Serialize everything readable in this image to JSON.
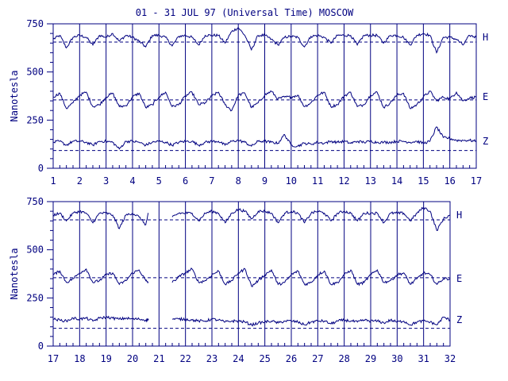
{
  "chart_data": [
    {
      "type": "line",
      "title": "01 - 31 JUL 97 (Universal Time) MOSCOW",
      "ylabel": "Nanotesla",
      "xlim": [
        1,
        17
      ],
      "ylim": [
        0,
        750
      ],
      "yticks": [
        0,
        250,
        500,
        750
      ],
      "xticks": [
        1,
        2,
        3,
        4,
        5,
        6,
        7,
        8,
        9,
        10,
        11,
        12,
        13,
        14,
        15,
        16,
        17
      ],
      "grid": "vertical day lines",
      "series": [
        {
          "name": "H",
          "baseline": 655,
          "x": [
            1.0,
            1.25,
            1.5,
            1.75,
            2.0,
            2.25,
            2.5,
            2.75,
            3.0,
            3.25,
            3.5,
            3.75,
            4.0,
            4.25,
            4.5,
            4.75,
            5.0,
            5.25,
            5.5,
            5.75,
            6.0,
            6.25,
            6.5,
            6.75,
            7.0,
            7.25,
            7.5,
            7.75,
            8.0,
            8.25,
            8.5,
            8.75,
            9.0,
            9.25,
            9.5,
            9.75,
            10.0,
            10.25,
            10.5,
            10.75,
            11.0,
            11.25,
            11.5,
            11.75,
            12.0,
            12.25,
            12.5,
            12.75,
            13.0,
            13.25,
            13.5,
            13.75,
            14.0,
            14.25,
            14.5,
            14.75,
            15.0,
            15.25,
            15.5,
            15.75,
            16.0,
            16.25,
            16.5,
            16.75,
            17.0
          ],
          "values": [
            670,
            690,
            625,
            680,
            690,
            680,
            640,
            690,
            680,
            700,
            660,
            690,
            680,
            660,
            630,
            690,
            690,
            680,
            635,
            685,
            690,
            680,
            640,
            690,
            690,
            690,
            650,
            710,
            730,
            690,
            615,
            690,
            690,
            670,
            640,
            680,
            685,
            680,
            630,
            685,
            690,
            680,
            650,
            690,
            690,
            690,
            640,
            690,
            690,
            690,
            650,
            690,
            690,
            680,
            640,
            690,
            700,
            690,
            600,
            680,
            680,
            670,
            640,
            690,
            680
          ]
        },
        {
          "name": "E",
          "baseline": 355,
          "x": [
            1.0,
            1.25,
            1.5,
            1.75,
            2.0,
            2.25,
            2.5,
            2.75,
            3.0,
            3.25,
            3.5,
            3.75,
            4.0,
            4.25,
            4.5,
            4.75,
            5.0,
            5.25,
            5.5,
            5.75,
            6.0,
            6.25,
            6.5,
            6.75,
            7.0,
            7.25,
            7.5,
            7.75,
            8.0,
            8.25,
            8.5,
            8.75,
            9.0,
            9.25,
            9.5,
            9.75,
            10.0,
            10.25,
            10.5,
            10.75,
            11.0,
            11.25,
            11.5,
            11.75,
            12.0,
            12.25,
            12.5,
            12.75,
            13.0,
            13.25,
            13.5,
            13.75,
            14.0,
            14.25,
            14.5,
            14.75,
            15.0,
            15.25,
            15.5,
            15.75,
            16.0,
            16.25,
            16.5,
            16.75,
            17.0
          ],
          "values": [
            370,
            390,
            310,
            340,
            380,
            395,
            320,
            330,
            370,
            390,
            320,
            325,
            370,
            390,
            315,
            330,
            370,
            395,
            320,
            330,
            375,
            395,
            330,
            340,
            375,
            395,
            330,
            300,
            380,
            390,
            315,
            340,
            380,
            400,
            360,
            370,
            370,
            380,
            320,
            340,
            380,
            395,
            320,
            330,
            375,
            395,
            320,
            330,
            380,
            395,
            315,
            340,
            380,
            390,
            310,
            330,
            370,
            400,
            350,
            370,
            360,
            395,
            350,
            365,
            370
          ]
        },
        {
          "name": "Z",
          "baseline": 92,
          "x": [
            1.0,
            1.25,
            1.5,
            1.75,
            2.0,
            2.25,
            2.5,
            2.75,
            3.0,
            3.25,
            3.5,
            3.75,
            4.0,
            4.25,
            4.5,
            4.75,
            5.0,
            5.25,
            5.5,
            5.75,
            6.0,
            6.25,
            6.5,
            6.75,
            7.0,
            7.25,
            7.5,
            7.75,
            8.0,
            8.25,
            8.5,
            8.75,
            9.0,
            9.25,
            9.5,
            9.75,
            10.0,
            10.25,
            10.5,
            10.75,
            11.0,
            11.25,
            11.5,
            11.75,
            12.0,
            12.25,
            12.5,
            12.75,
            13.0,
            13.25,
            13.5,
            13.75,
            14.0,
            14.25,
            14.5,
            14.75,
            15.0,
            15.25,
            15.5,
            15.75,
            16.0,
            16.25,
            16.5,
            16.75,
            17.0
          ],
          "values": [
            135,
            140,
            120,
            140,
            140,
            135,
            120,
            140,
            140,
            135,
            100,
            140,
            140,
            135,
            120,
            135,
            140,
            135,
            120,
            135,
            140,
            140,
            120,
            135,
            140,
            140,
            120,
            140,
            145,
            135,
            115,
            140,
            140,
            135,
            130,
            175,
            120,
            115,
            130,
            125,
            135,
            130,
            140,
            135,
            140,
            130,
            140,
            135,
            140,
            135,
            135,
            135,
            140,
            140,
            135,
            140,
            130,
            140,
            215,
            160,
            155,
            145,
            145,
            145,
            140
          ]
        }
      ]
    },
    {
      "type": "line",
      "ylabel": "Nanotesla",
      "xlim": [
        17,
        32
      ],
      "ylim": [
        0,
        750
      ],
      "yticks": [
        0,
        250,
        500,
        750
      ],
      "xticks": [
        17,
        18,
        19,
        20,
        21,
        22,
        23,
        24,
        25,
        26,
        27,
        28,
        29,
        30,
        31,
        32
      ],
      "grid": "vertical day lines",
      "gap": [
        20.6,
        21.5
      ],
      "series": [
        {
          "name": "H",
          "baseline": 655,
          "x": [
            17.0,
            17.25,
            17.5,
            17.75,
            18.0,
            18.25,
            18.5,
            18.75,
            19.0,
            19.25,
            19.5,
            19.75,
            20.0,
            20.25,
            20.5,
            20.6,
            21.5,
            21.75,
            22.0,
            22.25,
            22.5,
            22.75,
            23.0,
            23.25,
            23.5,
            23.75,
            24.0,
            24.25,
            24.5,
            24.75,
            25.0,
            25.25,
            25.5,
            25.75,
            26.0,
            26.25,
            26.5,
            26.75,
            27.0,
            27.25,
            27.5,
            27.75,
            28.0,
            28.25,
            28.5,
            28.75,
            29.0,
            29.25,
            29.5,
            29.75,
            30.0,
            30.25,
            30.5,
            30.75,
            31.0,
            31.25,
            31.5,
            31.75,
            32.0
          ],
          "values": [
            680,
            690,
            650,
            690,
            700,
            690,
            640,
            690,
            690,
            680,
            610,
            680,
            690,
            670,
            630,
            690,
            670,
            690,
            690,
            690,
            650,
            690,
            700,
            690,
            640,
            690,
            710,
            700,
            660,
            700,
            700,
            690,
            640,
            690,
            700,
            690,
            640,
            690,
            700,
            690,
            650,
            690,
            700,
            690,
            650,
            690,
            690,
            690,
            640,
            690,
            690,
            690,
            650,
            690,
            720,
            700,
            600,
            660,
            680
          ]
        },
        {
          "name": "E",
          "baseline": 355,
          "x": [
            17.0,
            17.25,
            17.5,
            17.75,
            18.0,
            18.25,
            18.5,
            18.75,
            19.0,
            19.25,
            19.5,
            19.75,
            20.0,
            20.25,
            20.5,
            20.6,
            21.5,
            21.75,
            22.0,
            22.25,
            22.5,
            22.75,
            23.0,
            23.25,
            23.5,
            23.75,
            24.0,
            24.25,
            24.5,
            24.75,
            25.0,
            25.25,
            25.5,
            25.75,
            26.0,
            26.25,
            26.5,
            26.75,
            27.0,
            27.25,
            27.5,
            27.75,
            28.0,
            28.25,
            28.5,
            28.75,
            29.0,
            29.25,
            29.5,
            29.75,
            30.0,
            30.25,
            30.5,
            30.75,
            31.0,
            31.25,
            31.5,
            31.75,
            32.0
          ],
          "values": [
            370,
            390,
            330,
            350,
            380,
            400,
            330,
            340,
            370,
            380,
            320,
            340,
            380,
            395,
            340,
            330,
            330,
            360,
            380,
            400,
            330,
            340,
            370,
            390,
            320,
            340,
            380,
            400,
            310,
            340,
            370,
            395,
            320,
            330,
            370,
            390,
            320,
            330,
            370,
            390,
            320,
            330,
            370,
            395,
            320,
            330,
            370,
            395,
            330,
            340,
            370,
            380,
            320,
            350,
            380,
            370,
            320,
            350,
            350
          ]
        },
        {
          "name": "Z",
          "baseline": 92,
          "x": [
            17.0,
            17.25,
            17.5,
            17.75,
            18.0,
            18.25,
            18.5,
            18.75,
            19.0,
            19.25,
            19.5,
            19.75,
            20.0,
            20.25,
            20.5,
            20.6,
            21.5,
            21.75,
            22.0,
            22.25,
            22.5,
            22.75,
            23.0,
            23.25,
            23.5,
            23.75,
            24.0,
            24.25,
            24.5,
            24.75,
            25.0,
            25.25,
            25.5,
            25.75,
            26.0,
            26.25,
            26.5,
            26.75,
            27.0,
            27.25,
            27.5,
            27.75,
            28.0,
            28.25,
            28.5,
            28.75,
            29.0,
            29.25,
            29.5,
            29.75,
            30.0,
            30.25,
            30.5,
            30.75,
            31.0,
            31.25,
            31.5,
            31.75,
            32.0
          ],
          "values": [
            140,
            135,
            130,
            145,
            140,
            145,
            130,
            145,
            150,
            145,
            140,
            145,
            140,
            140,
            135,
            140,
            140,
            140,
            140,
            135,
            130,
            130,
            140,
            135,
            125,
            130,
            130,
            125,
            110,
            120,
            125,
            130,
            120,
            130,
            130,
            125,
            110,
            125,
            130,
            130,
            115,
            130,
            135,
            130,
            125,
            135,
            130,
            130,
            120,
            135,
            125,
            130,
            110,
            125,
            130,
            125,
            110,
            150,
            135
          ]
        }
      ]
    }
  ]
}
